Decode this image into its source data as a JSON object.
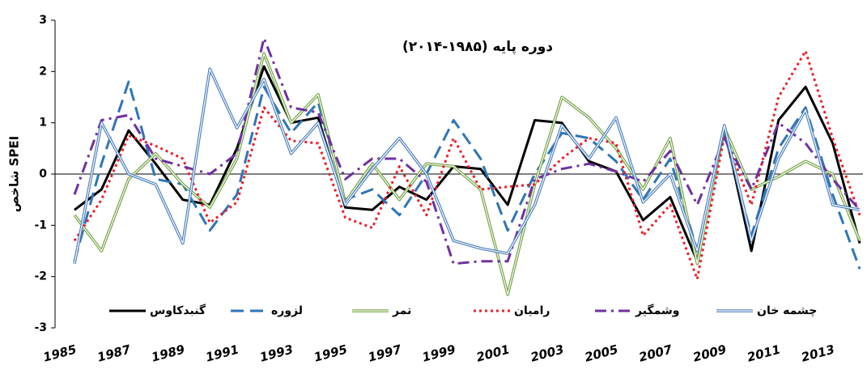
{
  "chart_data": {
    "type": "line",
    "title": "دوره پایه (۱۹۸۵-۲۰۱۴)",
    "y_label": "شاخص SPEI",
    "x": [
      1985,
      1986,
      1987,
      1988,
      1989,
      1990,
      1991,
      1992,
      1993,
      1994,
      1995,
      1996,
      1997,
      1998,
      1999,
      2000,
      2001,
      2002,
      2003,
      2004,
      2005,
      2006,
      2007,
      2008,
      2009,
      2010,
      2011,
      2012,
      2013,
      2014
    ],
    "xlim": [
      1985,
      2014
    ],
    "xticks": [
      1985,
      1987,
      1989,
      1991,
      1993,
      1995,
      1997,
      1999,
      2001,
      2003,
      2005,
      2007,
      2009,
      2011,
      2013
    ],
    "ylim": [
      -3,
      3
    ],
    "yticks": [
      -3,
      -2,
      -1,
      0,
      1,
      2,
      3
    ],
    "legend": "bottom",
    "series": [
      {
        "name": "گنبدکاوس",
        "color": "#000000",
        "dash": "solid",
        "values": [
          -0.7,
          -0.3,
          0.85,
          0.2,
          -0.5,
          -0.6,
          0.5,
          2.1,
          1.0,
          1.1,
          -0.65,
          -0.7,
          -0.25,
          -0.5,
          0.15,
          0.1,
          -0.6,
          1.05,
          1.0,
          0.25,
          0.05,
          -0.9,
          -0.45,
          -1.7,
          0.9,
          -1.5,
          1.05,
          1.7,
          0.6,
          -1.35
        ]
      },
      {
        "name": "لزوره",
        "color": "#2e75b6",
        "dash": "dashed",
        "values": [
          -1.7,
          0.2,
          1.8,
          -0.1,
          -0.2,
          -1.1,
          -0.4,
          1.7,
          0.8,
          1.4,
          -0.5,
          -0.3,
          -0.8,
          0.0,
          1.05,
          0.3,
          -1.1,
          0.0,
          0.8,
          0.7,
          0.25,
          -0.5,
          0.3,
          -1.5,
          0.8,
          -1.2,
          0.5,
          1.3,
          -0.4,
          -1.85
        ]
      },
      {
        "name": "تمر",
        "color": "#70a040",
        "dash": "double",
        "values": [
          -0.8,
          -1.5,
          -0.1,
          0.4,
          -0.2,
          -0.65,
          0.3,
          2.35,
          1.0,
          1.55,
          -0.55,
          0.2,
          -0.5,
          0.2,
          0.15,
          -0.3,
          -2.35,
          -0.2,
          1.5,
          1.1,
          0.5,
          -0.3,
          0.7,
          -1.75,
          0.9,
          -0.3,
          -0.05,
          0.25,
          0.0,
          -1.3
        ]
      },
      {
        "name": "رامیان",
        "color": "#e8202a",
        "dash": "dotted",
        "values": [
          -1.3,
          -0.5,
          0.75,
          0.55,
          0.3,
          -0.95,
          -0.55,
          1.3,
          0.65,
          0.6,
          -0.85,
          -1.05,
          0.15,
          -0.8,
          0.7,
          -0.3,
          -0.25,
          -0.2,
          0.3,
          0.7,
          0.6,
          -1.2,
          -0.6,
          -2.05,
          0.75,
          -0.6,
          1.5,
          2.4,
          0.7,
          -0.8
        ]
      },
      {
        "name": "وشمگیر",
        "color": "#7030a0",
        "dash": "dashdot",
        "values": [
          -0.4,
          1.05,
          1.15,
          0.3,
          0.15,
          0.0,
          0.4,
          2.65,
          1.3,
          1.2,
          -0.1,
          0.3,
          0.3,
          -0.15,
          -1.75,
          -1.7,
          -1.7,
          -0.1,
          0.1,
          0.2,
          0.05,
          -0.15,
          0.45,
          -0.6,
          0.7,
          -0.3,
          1.0,
          0.6,
          -0.1,
          -0.7
        ]
      },
      {
        "name": "چشمه خان",
        "color": "#4a7ebb",
        "dash": "double",
        "values": [
          -1.75,
          1.0,
          0.0,
          -0.2,
          -1.35,
          2.05,
          0.9,
          1.85,
          0.4,
          1.0,
          -0.6,
          0.1,
          0.7,
          0.0,
          -1.3,
          -1.45,
          -1.55,
          -0.6,
          0.95,
          0.3,
          1.1,
          -0.55,
          0.0,
          -1.5,
          0.95,
          -1.3,
          0.3,
          1.25,
          -0.6,
          -0.7
        ]
      }
    ]
  }
}
